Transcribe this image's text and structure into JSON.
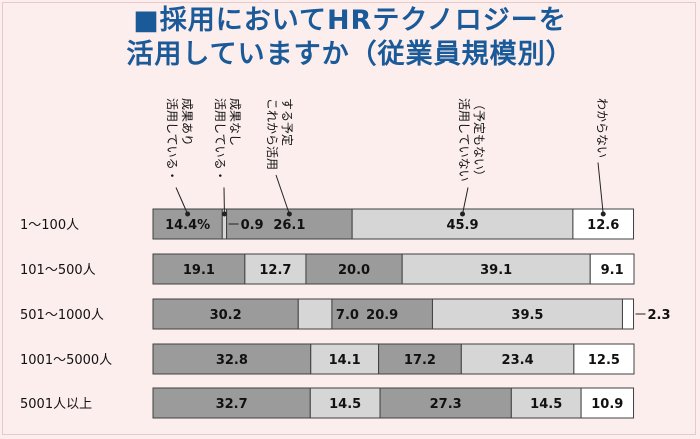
{
  "title": {
    "line1": "■採用においてHRテクノロジーを",
    "line2": "活用していますか（従業員規模別）"
  },
  "colors": {
    "background": "#fdeeee",
    "title": "#1a5a99",
    "dark_gray": "#9b9b9b",
    "light_gray": "#d6d6d6",
    "white": "#ffffff",
    "outline": "#404040"
  },
  "chart_data": {
    "type": "stacked-bar-horizontal",
    "series": [
      {
        "name": "活用している・成果あり",
        "label_lines": [
          "活用している・",
          "成果あり"
        ],
        "fill": "dark"
      },
      {
        "name": "活用している・成果なし",
        "label_lines": [
          "活用している・",
          "成果なし"
        ],
        "fill": "light"
      },
      {
        "name": "これから活用する予定",
        "label_lines": [
          "これから活用",
          "する予定"
        ],
        "fill": "dark"
      },
      {
        "name": "活用していない（予定もない）",
        "label_lines": [
          "活用していない",
          "（予定もない）"
        ],
        "fill": "light"
      },
      {
        "name": "わからない",
        "label_lines": [
          "わからない"
        ],
        "fill": "white"
      }
    ],
    "categories": [
      "1～100人",
      "101～500人",
      "501～1000人",
      "1001～5000人",
      "5001人以上"
    ],
    "rows": [
      {
        "values": [
          14.4,
          0.9,
          26.1,
          45.9,
          12.6
        ],
        "labels": [
          "14.4%",
          "0.9",
          "26.1",
          "45.9",
          "12.6"
        ]
      },
      {
        "values": [
          19.1,
          12.7,
          20.0,
          39.1,
          9.1
        ],
        "labels": [
          "19.1",
          "12.7",
          "20.0",
          "39.1",
          "9.1"
        ]
      },
      {
        "values": [
          30.2,
          7.0,
          20.9,
          39.5,
          2.3
        ],
        "labels": [
          "30.2",
          "7.0",
          "20.9",
          "39.5",
          "2.3"
        ]
      },
      {
        "values": [
          32.8,
          14.1,
          17.2,
          23.4,
          12.5
        ],
        "labels": [
          "32.8",
          "14.1",
          "17.2",
          "23.4",
          "12.5"
        ]
      },
      {
        "values": [
          32.7,
          14.5,
          27.3,
          14.5,
          10.9
        ],
        "labels": [
          "32.7",
          "14.5",
          "27.3",
          "14.5",
          "10.9"
        ]
      }
    ],
    "xlim": [
      0,
      100
    ],
    "unit": "%"
  }
}
